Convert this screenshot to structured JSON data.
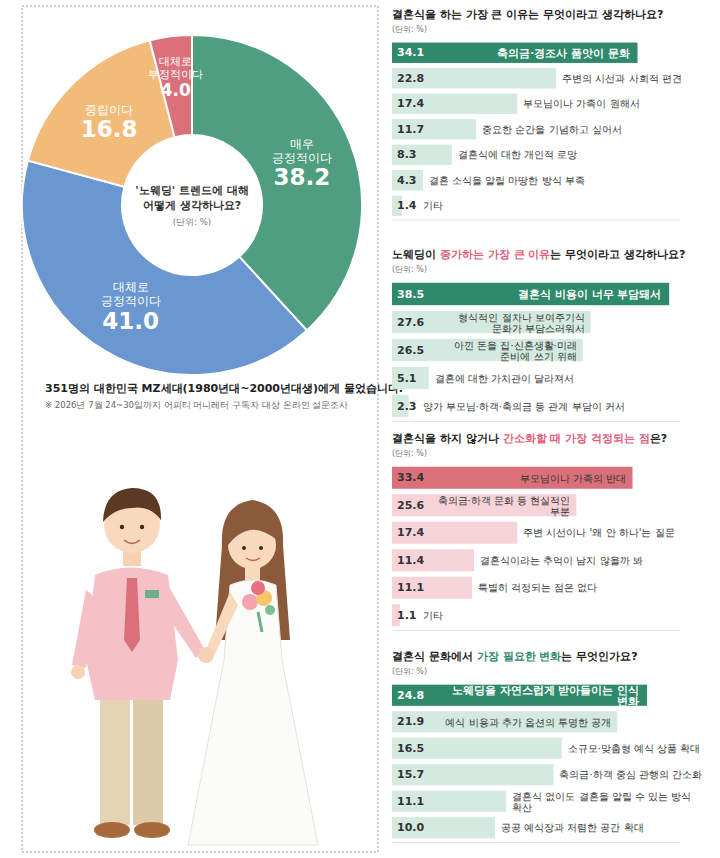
{
  "chart_data": [
    {
      "type": "pie",
      "title": "'노웨딩' 트렌드에 대해 어떻게 생각하나요?",
      "subtitle": "(단위: %)",
      "categories": [
        "매우 긍정적이다",
        "대체로 긍정적이다",
        "중립이다",
        "대체로 부정적이다"
      ],
      "values": [
        38.2,
        41.0,
        16.8,
        4.0
      ],
      "value_labels": [
        "38.2",
        "41.0",
        "16.8",
        "4.0"
      ],
      "colors": [
        "#4e9e7f",
        "#6a97cf",
        "#f3bb7a",
        "#d9707a"
      ],
      "data_labels": true,
      "annotations": [
        "351명의 대한민국 MZ세대(1980년대~2000년대생)에게 물었습니다.",
        "※ 2026년 7월 24~30일까지 어피티 머니레터 구독자 대상 온라인 설문조사"
      ]
    },
    {
      "type": "bar",
      "orientation": "horizontal",
      "title": "결혼식을 하는 가장 큰 이유는 무엇이라고 생각하나요?",
      "subtitle": "(단위: %)",
      "categories": [
        "축의금·경조사 품앗이 문화",
        "주변의 시선과 사회적 편견",
        "부모님이나 가족이 원해서",
        "중요한 순간을 기념하고 싶어서",
        "결혼식에 대한 개인적 로망",
        "결혼 소식을 알릴 마땅한 방식 부족",
        "기타"
      ],
      "values": [
        34.1,
        22.8,
        17.4,
        11.7,
        8.3,
        4.3,
        1.4
      ],
      "value_labels": [
        "34.1",
        "22.8",
        "17.4",
        "11.7",
        "8.3",
        "4.3",
        "1.4"
      ],
      "colors": [
        "#2f8a6b",
        "#d4e9df",
        "#d4e9df",
        "#d4e9df",
        "#d4e9df",
        "#d4e9df",
        "#d4e9df"
      ],
      "xlim": [
        0,
        40
      ],
      "tick_labels": false,
      "data_labels": true
    },
    {
      "type": "bar",
      "orientation": "horizontal",
      "title": "노웨딩이 증가하는 가장 큰 이유는 무엇이라고 생각하나요?",
      "title_highlight": "증가하는 가장 큰 이유",
      "subtitle": "(단위: %)",
      "categories": [
        "결혼식 비용이 너무 부담돼서",
        "형식적인 절차나 보여주기식 문화가 부담스러워서",
        "아낀 돈을 집·신혼생활·미래 준비에 쓰기 위해",
        "결혼에 대한 가치관이 달라져서",
        "양가 부모님·하객·축의금 등 관계 부담이 커서"
      ],
      "values": [
        38.5,
        27.6,
        26.5,
        5.1,
        2.3
      ],
      "value_labels": [
        "38.5",
        "27.6",
        "26.5",
        "5.1",
        "2.3"
      ],
      "colors": [
        "#2f8a6b",
        "#d4e9df",
        "#d4e9df",
        "#d4e9df",
        "#d4e9df"
      ],
      "xlim": [
        0,
        40
      ],
      "tick_labels": false,
      "data_labels": true
    },
    {
      "type": "bar",
      "orientation": "horizontal",
      "title": "결혼식을 하지 않거나 간소화할 때 가장 걱정되는 점은?",
      "title_highlight": "간소화할 때 가장 걱정되는 점",
      "subtitle": "(단위: %)",
      "categories": [
        "부모님이나 가족의 반대",
        "축의금·하객 문화 등 현실적인 부분",
        "주변 시선이나 '왜 안 하나'는 질문",
        "결혼식이라는 추억이 남지 않을까 봐",
        "특별히 걱정되는 점은 없다",
        "기타"
      ],
      "values": [
        33.4,
        25.6,
        17.4,
        11.4,
        11.1,
        1.1
      ],
      "value_labels": [
        "33.4",
        "25.6",
        "17.4",
        "11.4",
        "11.1",
        "1.1"
      ],
      "colors": [
        "#d9707a",
        "#f6d3d9",
        "#f6d3d9",
        "#f6d3d9",
        "#f6d3d9",
        "#f6d3d9"
      ],
      "xlim": [
        0,
        40
      ],
      "tick_labels": false,
      "data_labels": true
    },
    {
      "type": "bar",
      "orientation": "horizontal",
      "title": "결혼식 문화에서 가장 필요한 변화는 무엇인가요?",
      "title_highlight": "가장 필요한 변화",
      "subtitle": "(단위: %)",
      "categories": [
        "노웨딩을 자연스럽게 받아들이는 인식 변화",
        "예식 비용과 추가 옵션의 투명한 공개",
        "소규모·맞춤형 예식 상품 확대",
        "축의금·하객 중심 관행의 간소화",
        "결혼식 없이도 결혼을 알릴 수 있는 방식 확산",
        "공공 예식장과 저렴한 공간 확대"
      ],
      "values": [
        24.8,
        21.9,
        16.5,
        15.7,
        11.1,
        10.0
      ],
      "value_labels": [
        "24.8",
        "21.9",
        "16.5",
        "15.7",
        "11.1",
        "10.0"
      ],
      "colors": [
        "#2f8a6b",
        "#d4e9df",
        "#d4e9df",
        "#d4e9df",
        "#d4e9df",
        "#d4e9df"
      ],
      "xlim": [
        0,
        28
      ],
      "tick_labels": false,
      "data_labels": true
    }
  ]
}
